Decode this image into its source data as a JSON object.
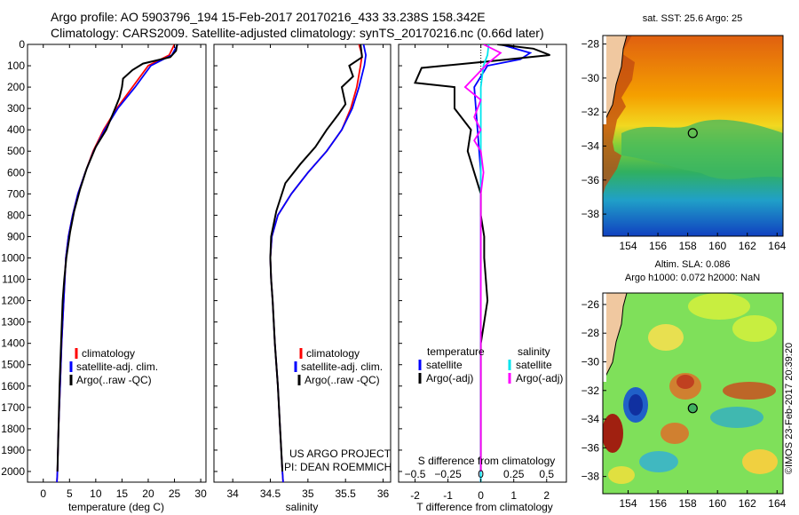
{
  "header": {
    "line1": "Argo profile: AO 5903796_194 15-Feb-2017 20170216_433 33.238S 158.342E",
    "line2": "Climatology: CARS2009. Satellite-adjusted climatology: synTS_20170216.nc (0.66d later)"
  },
  "colors": {
    "climatology": "#ff0000",
    "satellite": "#0000ff",
    "argo": "#000000",
    "sal_sat": "#00e5ee",
    "sal_argo": "#ff00ff"
  },
  "chart_data": [
    {
      "id": "temperature",
      "type": "line",
      "xlabel": "temperature (deg C)",
      "ylabel": "",
      "xlim": [
        -3,
        31
      ],
      "ylim": [
        2050,
        0
      ],
      "xticks": [
        0,
        5,
        10,
        15,
        20,
        25,
        30
      ],
      "yticks": [
        0,
        100,
        200,
        300,
        400,
        500,
        600,
        700,
        800,
        900,
        1000,
        1100,
        1200,
        1300,
        1400,
        1500,
        1600,
        1700,
        1800,
        1900,
        2000
      ],
      "legend": [
        "climatology",
        "satellite-adj. clim.",
        "Argo(..raw -QC)"
      ],
      "series": [
        {
          "name": "climatology",
          "color": "#ff0000",
          "points": [
            [
              25,
              0
            ],
            [
              24,
              50
            ],
            [
              20,
              100
            ],
            [
              17,
              200
            ],
            [
              14,
              300
            ],
            [
              11.5,
              400
            ],
            [
              9.5,
              500
            ],
            [
              8,
              600
            ],
            [
              6.6,
              700
            ],
            [
              5.6,
              800
            ],
            [
              4.8,
              900
            ],
            [
              4.3,
              1000
            ],
            [
              3.9,
              1200
            ],
            [
              3.5,
              1400
            ],
            [
              3.2,
              1600
            ],
            [
              2.9,
              1800
            ],
            [
              2.7,
              2000
            ],
            [
              2.6,
              2050
            ]
          ]
        },
        {
          "name": "satellite-adj. clim.",
          "color": "#0000ff",
          "points": [
            [
              25.6,
              0
            ],
            [
              24.5,
              50
            ],
            [
              20.5,
              100
            ],
            [
              17.5,
              200
            ],
            [
              14.2,
              300
            ],
            [
              11.7,
              400
            ],
            [
              9.6,
              500
            ],
            [
              8,
              600
            ],
            [
              6.6,
              700
            ],
            [
              5.6,
              800
            ],
            [
              4.8,
              900
            ],
            [
              4.3,
              1000
            ],
            [
              3.9,
              1200
            ],
            [
              3.5,
              1400
            ],
            [
              3.2,
              1600
            ],
            [
              2.9,
              1800
            ],
            [
              2.7,
              2000
            ],
            [
              2.6,
              2050
            ]
          ]
        },
        {
          "name": "Argo(..raw -QC)",
          "color": "#000000",
          "points": [
            [
              25.5,
              0
            ],
            [
              25.3,
              30
            ],
            [
              24.2,
              60
            ],
            [
              19,
              90
            ],
            [
              17,
              120
            ],
            [
              15.2,
              160
            ],
            [
              15,
              200
            ],
            [
              14.5,
              250
            ],
            [
              13.7,
              300
            ],
            [
              12,
              400
            ],
            [
              10,
              480
            ],
            [
              8.3,
              580
            ],
            [
              7,
              680
            ],
            [
              5.9,
              780
            ],
            [
              5.1,
              880
            ],
            [
              4.4,
              1000
            ],
            [
              4,
              1100
            ],
            [
              3.7,
              1200
            ],
            [
              3.4,
              1400
            ],
            [
              3.1,
              1600
            ],
            [
              2.9,
              1800
            ],
            [
              2.7,
              2000
            ]
          ]
        }
      ]
    },
    {
      "id": "salinity",
      "type": "line",
      "xlabel": "salinity",
      "ylabel": "",
      "xlim": [
        33.75,
        36.1
      ],
      "ylim": [
        2050,
        0
      ],
      "xticks": [
        34,
        34.5,
        35,
        35.5,
        36
      ],
      "legend": [
        "climatology",
        "satellite-adj. clim.",
        "Argo(..raw -QC)"
      ],
      "annotations": [
        "US ARGO PROJECT",
        "PI: DEAN ROEMMICH"
      ],
      "series": [
        {
          "name": "climatology",
          "color": "#ff0000",
          "points": [
            [
              35.68,
              0
            ],
            [
              35.72,
              50
            ],
            [
              35.7,
              100
            ],
            [
              35.65,
              200
            ],
            [
              35.57,
              300
            ],
            [
              35.45,
              400
            ],
            [
              35.25,
              500
            ],
            [
              35,
              600
            ],
            [
              34.78,
              700
            ],
            [
              34.6,
              800
            ],
            [
              34.52,
              900
            ],
            [
              34.5,
              1000
            ],
            [
              34.51,
              1100
            ],
            [
              34.53,
              1200
            ],
            [
              34.56,
              1400
            ],
            [
              34.6,
              1600
            ],
            [
              34.63,
              1800
            ],
            [
              34.66,
              2000
            ],
            [
              34.67,
              2050
            ]
          ]
        },
        {
          "name": "satellite-adj. clim.",
          "color": "#0000ff",
          "points": [
            [
              35.74,
              0
            ],
            [
              35.77,
              50
            ],
            [
              35.75,
              100
            ],
            [
              35.68,
              200
            ],
            [
              35.59,
              300
            ],
            [
              35.45,
              400
            ],
            [
              35.25,
              500
            ],
            [
              35,
              600
            ],
            [
              34.78,
              700
            ],
            [
              34.6,
              800
            ],
            [
              34.52,
              900
            ],
            [
              34.5,
              1000
            ],
            [
              34.51,
              1100
            ],
            [
              34.53,
              1200
            ],
            [
              34.56,
              1400
            ],
            [
              34.6,
              1600
            ],
            [
              34.63,
              1800
            ],
            [
              34.66,
              2000
            ],
            [
              34.67,
              2050
            ]
          ]
        },
        {
          "name": "Argo(..raw -QC)",
          "color": "#000000",
          "points": [
            [
              35.7,
              0
            ],
            [
              35.72,
              60
            ],
            [
              35.55,
              100
            ],
            [
              35.6,
              150
            ],
            [
              35.45,
              200
            ],
            [
              35.5,
              280
            ],
            [
              35.4,
              330
            ],
            [
              35.25,
              400
            ],
            [
              35.1,
              480
            ],
            [
              34.9,
              560
            ],
            [
              34.7,
              650
            ],
            [
              34.58,
              780
            ],
            [
              34.51,
              900
            ],
            [
              34.5,
              1000
            ],
            [
              34.51,
              1100
            ],
            [
              34.53,
              1200
            ],
            [
              34.56,
              1400
            ],
            [
              34.6,
              1600
            ],
            [
              34.63,
              1800
            ],
            [
              34.66,
              2000
            ]
          ]
        }
      ]
    },
    {
      "id": "difference",
      "type": "line",
      "xlabel": "T difference from climatology",
      "xlabel_top": "S difference from climatology",
      "xlim": [
        -2.5,
        2.6
      ],
      "ylim": [
        2050,
        0
      ],
      "xticks": [
        -2,
        -1,
        0,
        1,
        2
      ],
      "sticks": [
        -0.5,
        -0.25,
        0,
        0.25,
        0.5
      ],
      "stick_labels": [
        "−0.5",
        "−0.25",
        "0",
        "0.25",
        "0.5"
      ],
      "legend_headers": [
        "temperature",
        "salinity"
      ],
      "legend": [
        "satellite",
        "Argo(-adj)",
        "satellite",
        "Argo(-adj)"
      ],
      "series": [
        {
          "name": "T satellite",
          "color": "#0000ff",
          "points": [
            [
              0.6,
              0
            ],
            [
              1.5,
              40
            ],
            [
              1.2,
              70
            ],
            [
              0.2,
              100
            ],
            [
              -0.2,
              200
            ],
            [
              -0.1,
              400
            ],
            [
              0,
              600
            ],
            [
              0,
              800
            ],
            [
              0,
              1000
            ],
            [
              0,
              1400
            ],
            [
              0,
              2050
            ]
          ]
        },
        {
          "name": "T Argo(-adj)",
          "color": "#000000",
          "points": [
            [
              0.5,
              0
            ],
            [
              1.6,
              20
            ],
            [
              2.1,
              50
            ],
            [
              0.2,
              80
            ],
            [
              -1.8,
              110
            ],
            [
              -2,
              180
            ],
            [
              -0.8,
              200
            ],
            [
              -0.8,
              300
            ],
            [
              -0.3,
              400
            ],
            [
              -0.4,
              500
            ],
            [
              -0.2,
              600
            ],
            [
              0,
              700
            ],
            [
              0,
              800
            ],
            [
              0.1,
              900
            ],
            [
              0.1,
              1000
            ],
            [
              0.2,
              1200
            ],
            [
              0.1,
              1300
            ],
            [
              0,
              1400
            ],
            [
              0,
              1500
            ],
            [
              0,
              2000
            ]
          ]
        },
        {
          "name": "S satellite",
          "color": "#00e5ee",
          "points": [
            [
              0.06,
              0
            ],
            [
              0.05,
              50
            ],
            [
              0.02,
              100
            ],
            [
              0,
              200
            ],
            [
              0,
              300
            ],
            [
              0,
              400
            ],
            [
              0,
              600
            ],
            [
              0,
              800
            ],
            [
              0,
              1000
            ],
            [
              0,
              1400
            ],
            [
              0,
              2050
            ]
          ]
        },
        {
          "name": "S Argo(-adj)",
          "color": "#ff00ff",
          "points": [
            [
              0.02,
              0
            ],
            [
              0.15,
              40
            ],
            [
              0.05,
              90
            ],
            [
              -0.12,
              200
            ],
            [
              0,
              260
            ],
            [
              -0.05,
              340
            ],
            [
              0,
              400
            ],
            [
              -0.05,
              450
            ],
            [
              0,
              500
            ],
            [
              0.02,
              600
            ],
            [
              0,
              700
            ],
            [
              0,
              800
            ],
            [
              0,
              1000
            ],
            [
              0,
              1400
            ],
            [
              0,
              2000
            ]
          ]
        }
      ]
    },
    {
      "id": "sst_map",
      "type": "heatmap",
      "title": "sat. SST: 25.6 Argo: 25",
      "xticks": [
        154,
        156,
        158,
        160,
        162,
        164
      ],
      "ytick_labels": [
        "−28",
        "−30",
        "−32",
        "−34",
        "−36",
        "−38"
      ],
      "marker": {
        "lon": 158.34,
        "lat": -33.24
      }
    },
    {
      "id": "sla_map",
      "type": "heatmap",
      "title_line1": "Altim. SLA: 0.086",
      "title_line2": "Argo h1000: 0.072 h2000: NaN",
      "xticks": [
        154,
        156,
        158,
        160,
        162,
        164
      ],
      "ytick_labels": [
        "−26",
        "−28",
        "−30",
        "−32",
        "−34",
        "−36",
        "−38"
      ],
      "marker": {
        "lon": 158.34,
        "lat": -33.24
      }
    }
  ],
  "side_label": "©IMOS 23-Feb-2017 20:39:20"
}
